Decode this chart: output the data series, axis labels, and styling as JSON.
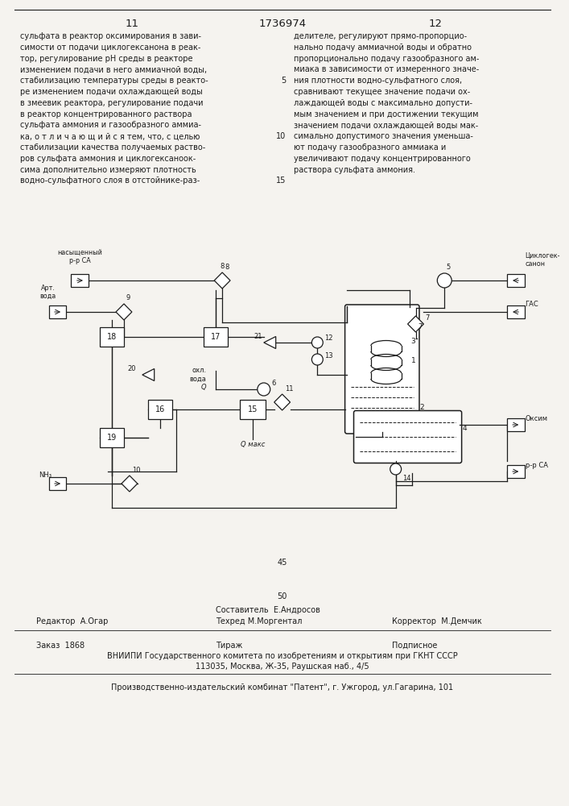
{
  "page_width": 7.07,
  "page_height": 10.0,
  "bg_color": "#f5f3ef",
  "top_left_number": "11",
  "top_center_text": "1736974",
  "top_right_number": "12",
  "left_col_text": [
    "сульфата в реактор оксимирования в зави-",
    "симости от подачи циклогексанона в реак-",
    "тор, регулирование рН среды в реакторе",
    "изменением подачи в него аммиачной воды,",
    "стабилизацию температуры среды в реакто-",
    "ре изменением подачи охлаждающей воды",
    "в змеевик реактора, регулирование подачи",
    "в реактор концентрированного раствора",
    "сульфата аммония и газообразного аммиа-",
    "ка, о т л и ч а ю щ и й с я тем, что, с целью"
  ],
  "left_col2_text": [
    "стабилизации качества получаемых раство-",
    "ров сульфата аммония и циклогексаноок-",
    "сима дополнительно измеряют плотность",
    "водно-сульфатного слоя в отстойнике-раз-"
  ],
  "right_col_text": [
    "делителе, регулируют прямо-пропорцио-",
    "нально подачу аммиачной воды и обратно",
    "пропорционально подачу газообразного ам-",
    "миака в зависимости от измеренного значе-",
    "ния плотности водно-сульфатного слоя,",
    "сравнивают текущее значение подачи ох-",
    "лаждающей воды с максимально допусти-",
    "мым значением и при достижении текущим",
    "значением подачи охлаждающей воды мак-",
    "симально допустимого значения уменьша-",
    "ют подачу газообразного аммиака и",
    "увеличивают подачу концентрированного",
    "раствора сульфата аммония."
  ],
  "linenum_5": "5",
  "linenum_10": "10",
  "linenum_15": "15",
  "linenum_45": "45",
  "linenum_50": "50",
  "editor_line": "Редактор  А.Огар",
  "composer_line": "Составитель  Е.Андросов",
  "techred_line": "Техред М.Моргентал",
  "corrector_line": "Корректор  М.Демчик",
  "order_line": "Заказ  1868",
  "tirazh_line": "Тираж",
  "podpisnoe_line": "Подписное",
  "vniipи_line": "ВНИИПИ Государственного комитета по изобретениям и открытиям при ГКНТ СССР",
  "address_line": "113035, Москва, Ж-35, Раушская наб., 4/5",
  "factory_line": "Производственно-издательский комбинат \"Патент\", г. Ужгород, ул.Гагарина, 101",
  "text_color": "#1c1c1c"
}
